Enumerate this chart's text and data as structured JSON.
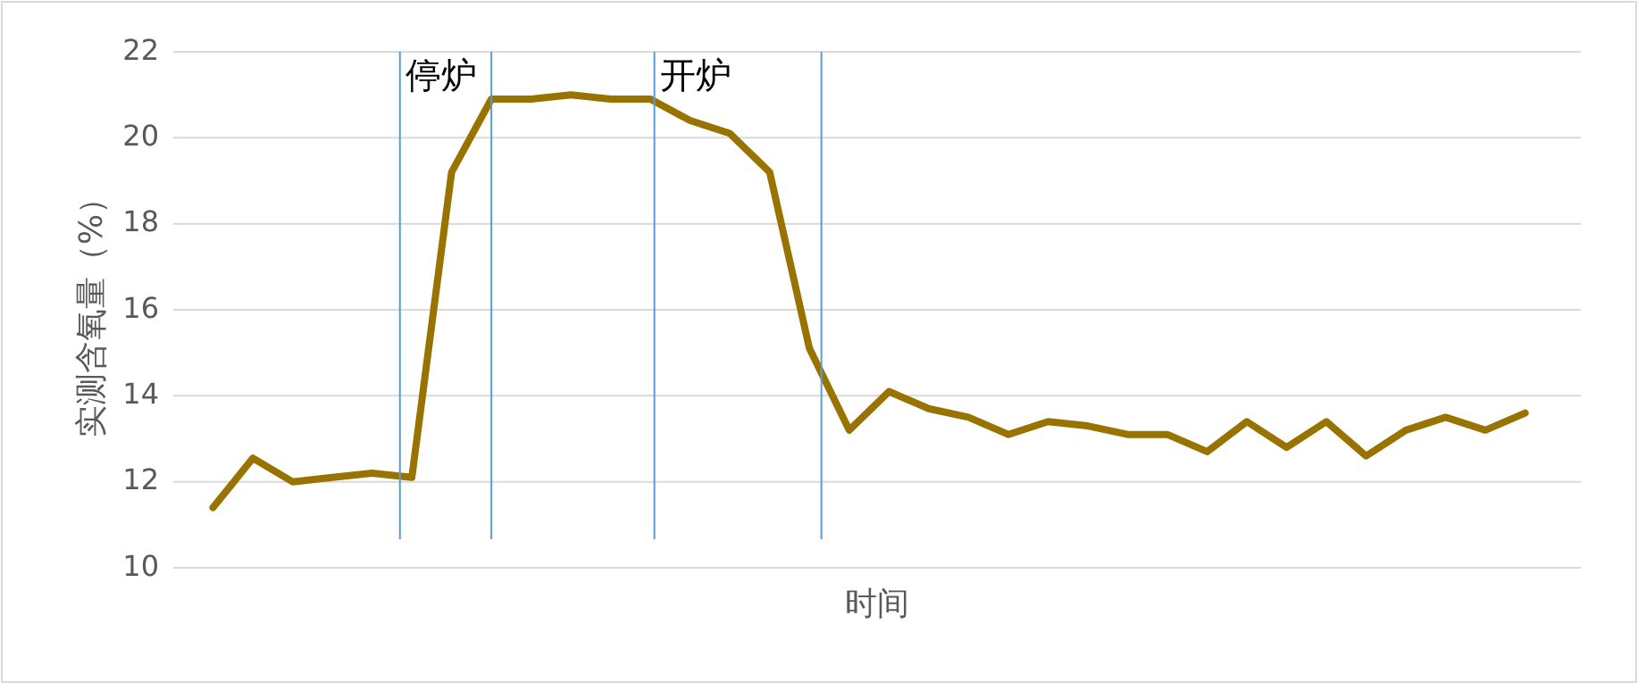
{
  "chart_data": {
    "type": "line",
    "xlabel": "时间",
    "ylabel": "实测含氧量（%）",
    "categories": [
      null,
      null,
      null,
      null,
      null,
      null,
      null,
      null,
      null,
      null,
      null,
      null,
      null,
      null,
      null,
      null,
      null,
      null,
      null,
      null,
      null,
      null,
      null,
      null,
      null,
      null,
      null,
      null,
      null,
      null,
      null,
      null,
      null,
      null
    ],
    "series": [
      {
        "color": "#997300",
        "values": [
          11.4,
          12.55,
          12.0,
          12.1,
          12.2,
          12.1,
          19.2,
          20.9,
          20.9,
          21.0,
          20.9,
          20.9,
          20.4,
          20.1,
          19.2,
          15.1,
          13.2,
          14.1,
          13.7,
          13.5,
          13.1,
          13.4,
          13.3,
          13.1,
          13.1,
          12.7,
          13.4,
          12.8,
          13.4,
          12.6,
          13.2,
          13.5,
          13.2,
          13.6
        ]
      }
    ],
    "ylim": [
      10,
      22
    ],
    "yticks": [
      10,
      12,
      14,
      16,
      18,
      20,
      22
    ],
    "grid": "y",
    "marker": "none",
    "line_style": "solid",
    "annotations": [
      "停炉",
      "开炉"
    ]
  }
}
